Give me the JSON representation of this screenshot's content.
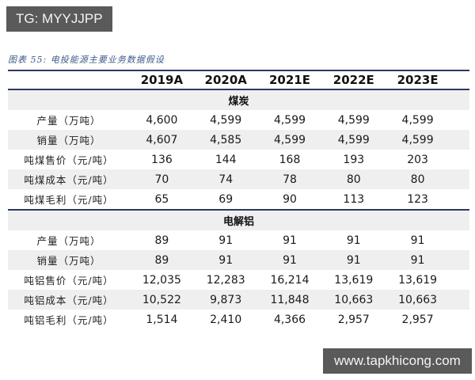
{
  "watermarks": {
    "top_left": "TG: MYYJJPP",
    "bottom_right": "www.tapkhicong.com"
  },
  "caption": "图表 55:  电投能源主要业务数据假设",
  "table": {
    "columns": [
      "",
      "2019A",
      "2020A",
      "2021E",
      "2022E",
      "2023E"
    ],
    "sections": [
      {
        "title": "煤炭",
        "rows": [
          {
            "label": "产量（万吨）",
            "values": [
              "4,600",
              "4,599",
              "4,599",
              "4,599",
              "4,599"
            ]
          },
          {
            "label": "销量（万吨）",
            "values": [
              "4,607",
              "4,585",
              "4,599",
              "4,599",
              "4,599"
            ]
          },
          {
            "label": "吨煤售价（元/吨）",
            "values": [
              "136",
              "144",
              "168",
              "193",
              "203"
            ]
          },
          {
            "label": "吨煤成本（元/吨）",
            "values": [
              "70",
              "74",
              "78",
              "80",
              "80"
            ]
          },
          {
            "label": "吨煤毛利（元/吨）",
            "values": [
              "65",
              "69",
              "90",
              "113",
              "123"
            ]
          }
        ]
      },
      {
        "title": "电解铝",
        "rows": [
          {
            "label": "产量（万吨）",
            "values": [
              "89",
              "91",
              "91",
              "91",
              "91"
            ]
          },
          {
            "label": "销量（万吨）",
            "values": [
              "89",
              "91",
              "91",
              "91",
              "91"
            ]
          },
          {
            "label": "吨铝售价（元/吨）",
            "values": [
              "12,035",
              "12,283",
              "16,214",
              "13,619",
              "13,619"
            ]
          },
          {
            "label": "吨铝成本（元/吨）",
            "values": [
              "10,522",
              "9,873",
              "11,848",
              "10,663",
              "10,663"
            ]
          },
          {
            "label": "吨铝毛利（元/吨）",
            "values": [
              "1,514",
              "2,410",
              "4,366",
              "2,957",
              "2,957"
            ]
          }
        ]
      }
    ]
  },
  "colors": {
    "rule": "#2b3a5c",
    "stripe": "#efefef",
    "caption": "#3d5a8a",
    "watermark_bg": "#5a5a5a"
  }
}
